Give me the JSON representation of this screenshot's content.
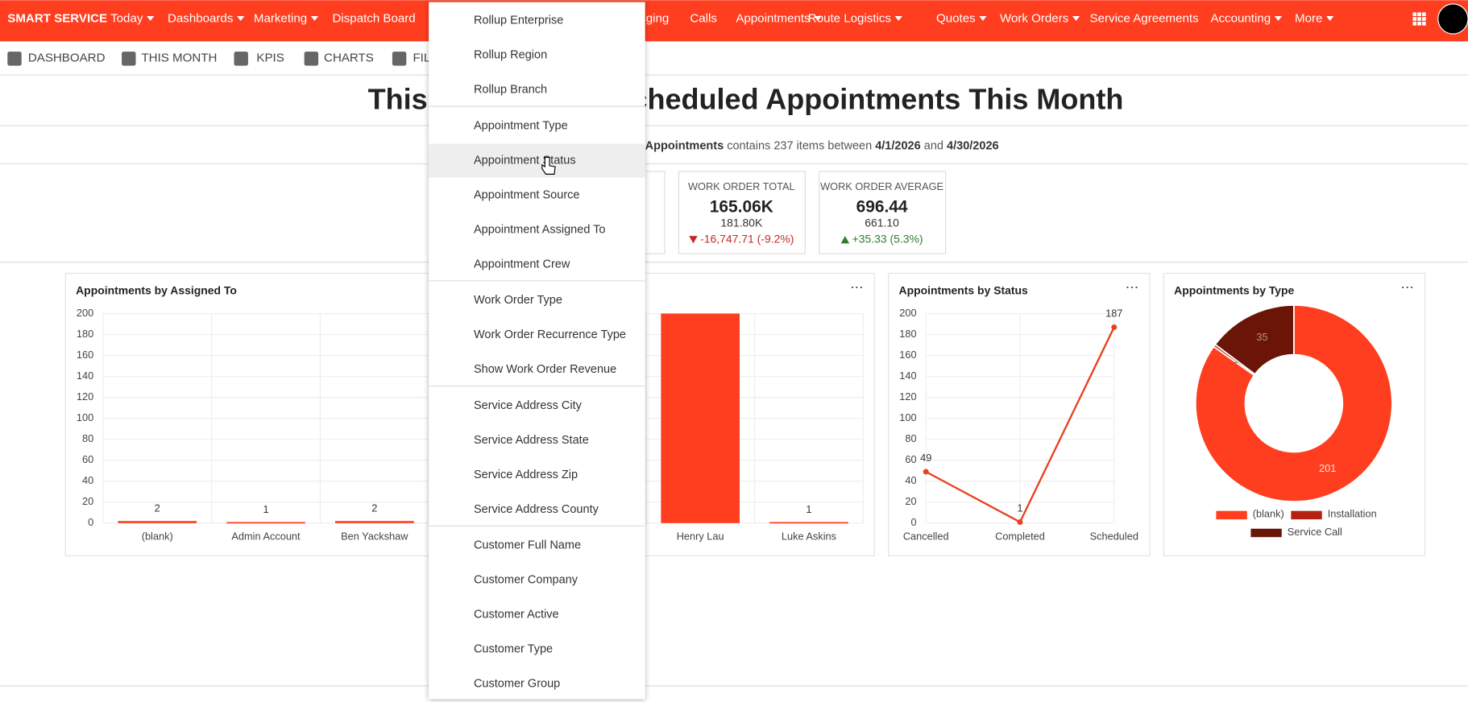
{
  "nav": {
    "brand": "SMART SERVICE",
    "items": [
      "Today",
      "Dashboards",
      "Marketing",
      "Dispatch Board",
      "ging",
      "Calls",
      "Appointments",
      "Route Logistics",
      "Quotes",
      "Work Orders",
      "Service Agreements",
      "Accounting",
      "More"
    ]
  },
  "toolbar": [
    "DASHBOARD",
    "THIS MONTH",
    "KPIS",
    "CHARTS",
    "FILT"
  ],
  "heading": {
    "left": "This",
    "right": "cheduled Appointments This Month"
  },
  "summary": {
    "subject": "Appointments",
    "text1": "contains 237 items between",
    "start": "4/1/2026",
    "text2": "and",
    "end": "4/30/2026"
  },
  "kpis": [
    {
      "label": "WORK ORDER TOTAL",
      "value": "165.06K",
      "previous": "181.80K",
      "change": "-16,747.71 (-9.2%)",
      "direction": "down"
    },
    {
      "label": "WORK ORDER AVERAGE",
      "value": "696.44",
      "previous": "661.10",
      "change": "+35.33 (5.3%)",
      "direction": "up"
    }
  ],
  "bar_chart": {
    "type": "bar",
    "title": "Appointments by Assigned To",
    "categories": [
      "(blank)",
      "Admin Account",
      "Ben Yackshaw",
      null,
      null,
      "Henry Lau",
      "Luke Askins"
    ],
    "values": [
      2,
      1,
      2,
      null,
      null,
      200,
      1
    ],
    "color": "#ff3d1f",
    "ylim": [
      0,
      200
    ],
    "yticks": [
      0,
      20,
      40,
      60,
      80,
      100,
      120,
      140,
      160,
      180,
      200
    ],
    "grid": true
  },
  "line_chart": {
    "type": "line",
    "title": "Appointments by Status",
    "categories": [
      "Cancelled",
      "Completed",
      "Scheduled"
    ],
    "values": [
      49,
      1,
      187
    ],
    "color": "#e8401f",
    "ylim": [
      0,
      200
    ],
    "yticks": [
      0,
      20,
      40,
      60,
      80,
      100,
      120,
      140,
      160,
      180,
      200
    ],
    "grid": true
  },
  "pie_chart": {
    "type": "donut",
    "title": "Appointments by Type",
    "categories": [
      "(blank)",
      "Installation",
      "Service Call"
    ],
    "values": [
      201,
      1,
      35
    ],
    "colors": [
      "#ff3d1f",
      "#b52010",
      "#6b1508"
    ]
  },
  "menu": {
    "groups": [
      [
        "Rollup Enterprise",
        "Rollup Region",
        "Rollup Branch"
      ],
      [
        "Appointment Type",
        "Appointment Status",
        "Appointment Source",
        "Appointment Assigned To",
        "Appointment Crew"
      ],
      [
        "Work Order Type",
        "Work Order Recurrence Type",
        "Show Work Order Revenue"
      ],
      [
        "Service Address City",
        "Service Address State",
        "Service Address Zip",
        "Service Address County"
      ],
      [
        "Customer Full Name",
        "Customer Company",
        "Customer Active",
        "Customer Type",
        "Customer Group"
      ]
    ],
    "hovered": "Appointment Status"
  }
}
